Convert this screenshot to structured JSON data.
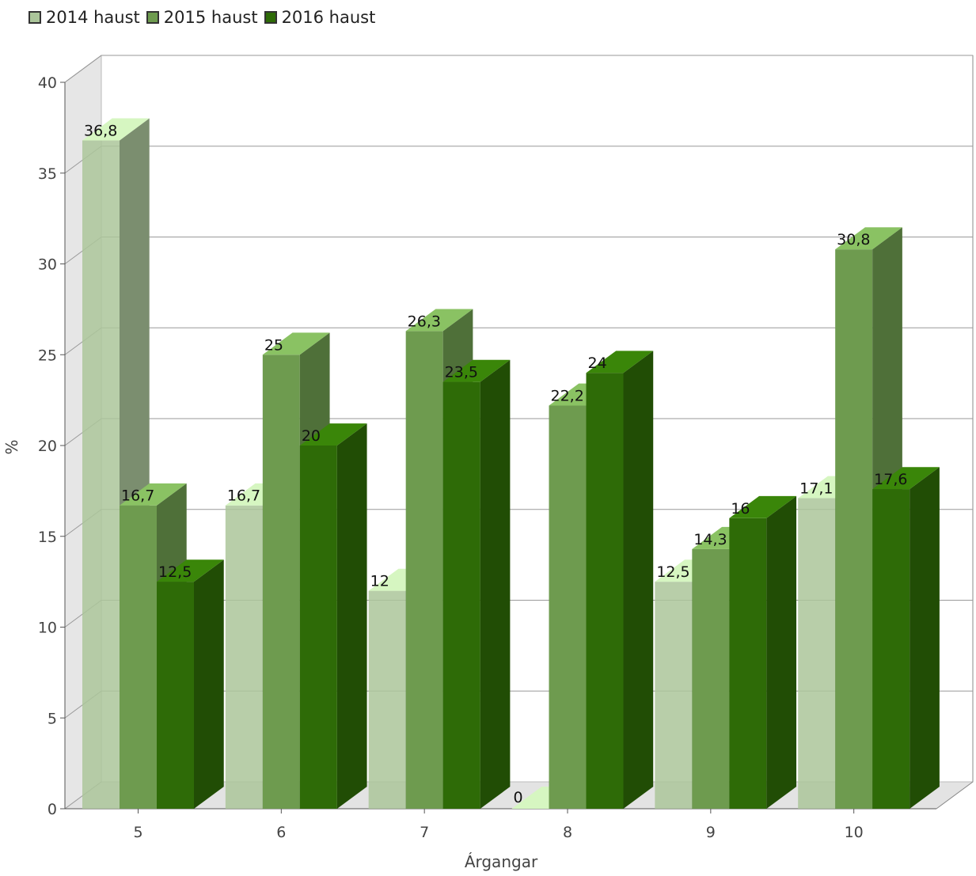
{
  "chart_data": {
    "type": "bar",
    "title": "",
    "xlabel": "Árgangar",
    "ylabel": "%",
    "ylim": [
      0,
      40
    ],
    "yticks": [
      0,
      5,
      10,
      15,
      20,
      25,
      30,
      35,
      40
    ],
    "grid": true,
    "legend_position": "top-left",
    "categories": [
      "5",
      "6",
      "7",
      "8",
      "9",
      "10"
    ],
    "series": [
      {
        "name": "2014 haust",
        "color": "#abc59a",
        "values": [
          36.8,
          16.7,
          12,
          0,
          12.5,
          17.1
        ],
        "labels": [
          "36,8",
          "16,7",
          "12",
          "0",
          "12,5",
          "17,1"
        ]
      },
      {
        "name": "2015 haust",
        "color": "#6e9b4f",
        "values": [
          16.7,
          25,
          26.3,
          22.2,
          14.3,
          30.8
        ],
        "labels": [
          "16,7",
          "25",
          "26,3",
          "22,2",
          "14,3",
          "30,8"
        ]
      },
      {
        "name": "2016 haust",
        "color": "#2e6b07",
        "values": [
          12.5,
          20,
          23.5,
          24,
          16,
          17.6
        ],
        "labels": [
          "12,5",
          "20",
          "23,5",
          "24",
          "16",
          "17,6"
        ]
      }
    ]
  }
}
